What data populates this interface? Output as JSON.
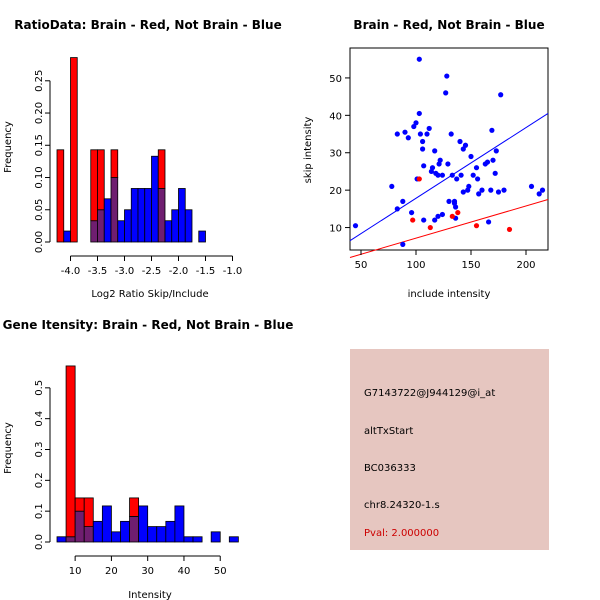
{
  "colors": {
    "brain": "#ff0000",
    "not_brain": "#0000ff",
    "overlap": "#6f1e70",
    "info_bg": "#e6c6c0",
    "pval_text": "#cc0000",
    "axis": "#000000"
  },
  "info_panel": {
    "probe_id": "G7143722@J944129@i_at",
    "event_type": "altTxStart",
    "accession": "BC036333",
    "location": "chr8.24320-1.s",
    "pval": "Pval: 2.000000"
  },
  "chart_data": [
    {
      "type": "bar",
      "title": "RatioData: Brain - Red, Not Brain - Blue",
      "xlabel": "Log2 Ratio Skip/Include",
      "ylabel": "Frequency",
      "xlim": [
        -4.25,
        -0.75
      ],
      "ylim": [
        0,
        0.29
      ],
      "bin_width": 0.125,
      "bin_start": -4.25,
      "x_ticks": [
        -4.0,
        -3.5,
        -3.0,
        -2.5,
        -2.0,
        -1.5,
        -1.0
      ],
      "x_tick_labels": [
        "-4.0",
        "-3.5",
        "-3.0",
        "-2.5",
        "-2.0",
        "-1.5",
        "-1.0"
      ],
      "y_ticks": [
        0.0,
        0.05,
        0.1,
        0.15,
        0.2,
        0.25
      ],
      "y_tick_labels": [
        "0.00",
        "0.05",
        "0.10",
        "0.15",
        "0.20",
        "0.25"
      ],
      "series": [
        {
          "name": "Brain",
          "values": [
            0.143,
            0,
            0.286,
            0,
            0,
            0.143,
            0.143,
            0,
            0.143,
            0,
            0,
            0,
            0,
            0,
            0,
            0.143,
            0,
            0,
            0,
            0,
            0,
            0,
            0,
            0,
            0,
            0,
            0,
            0
          ]
        },
        {
          "name": "Not Brain",
          "values": [
            0,
            0.017,
            0,
            0,
            0,
            0.033,
            0.05,
            0.067,
            0.1,
            0.033,
            0.05,
            0.083,
            0.083,
            0.083,
            0.133,
            0.083,
            0.033,
            0.05,
            0.083,
            0.05,
            0,
            0.017,
            0,
            0,
            0,
            0,
            0,
            0
          ]
        }
      ]
    },
    {
      "type": "scatter",
      "title": "Brain - Red, Not Brain - Blue",
      "xlabel": "include intensity",
      "ylabel": "skip intensity",
      "xlim": [
        40,
        220
      ],
      "ylim": [
        4,
        58
      ],
      "x_ticks": [
        50,
        100,
        150,
        200
      ],
      "x_tick_labels": [
        "50",
        "100",
        "150",
        "200"
      ],
      "y_ticks": [
        10,
        20,
        30,
        40,
        50
      ],
      "y_tick_labels": [
        "10",
        "20",
        "30",
        "40",
        "50"
      ],
      "series": [
        {
          "name": "Brain",
          "points": [
            [
              97,
              12
            ],
            [
              103,
              23
            ],
            [
              113,
              10
            ],
            [
              138,
              14
            ],
            [
              155,
              10.5
            ],
            [
              185,
              9.5
            ],
            [
              133,
              13
            ]
          ]
        },
        {
          "name": "Not Brain",
          "points": [
            [
              45,
              10.5
            ],
            [
              78,
              21
            ],
            [
              83,
              35
            ],
            [
              83,
              15
            ],
            [
              88,
              17
            ],
            [
              88,
              5.5
            ],
            [
              90,
              35.5
            ],
            [
              93,
              34
            ],
            [
              96,
              14
            ],
            [
              98,
              37
            ],
            [
              100,
              38
            ],
            [
              101,
              23
            ],
            [
              103,
              40.5
            ],
            [
              103,
              55
            ],
            [
              104,
              35
            ],
            [
              106,
              33
            ],
            [
              106,
              31
            ],
            [
              107,
              12
            ],
            [
              107,
              26.5
            ],
            [
              110,
              35
            ],
            [
              112,
              36.5
            ],
            [
              114,
              25
            ],
            [
              115,
              26
            ],
            [
              117,
              12
            ],
            [
              117,
              30.5
            ],
            [
              118,
              24.5
            ],
            [
              120,
              24
            ],
            [
              120,
              13
            ],
            [
              121,
              27
            ],
            [
              122,
              28
            ],
            [
              124,
              24
            ],
            [
              124,
              13.5
            ],
            [
              127,
              46
            ],
            [
              128,
              50.5
            ],
            [
              129,
              27
            ],
            [
              130,
              17
            ],
            [
              132,
              35
            ],
            [
              133,
              24
            ],
            [
              135,
              16.5
            ],
            [
              135,
              17
            ],
            [
              136,
              15.5
            ],
            [
              136,
              12.5
            ],
            [
              137,
              23
            ],
            [
              140,
              33
            ],
            [
              141,
              24
            ],
            [
              143,
              31
            ],
            [
              143,
              19.5
            ],
            [
              145,
              32
            ],
            [
              147,
              20
            ],
            [
              148,
              21
            ],
            [
              150,
              29
            ],
            [
              152,
              24
            ],
            [
              155,
              26
            ],
            [
              156,
              23
            ],
            [
              157,
              19
            ],
            [
              160,
              20
            ],
            [
              163,
              27
            ],
            [
              165,
              27.5
            ],
            [
              166,
              11.5
            ],
            [
              168,
              20
            ],
            [
              169,
              36
            ],
            [
              170,
              28
            ],
            [
              172,
              24.5
            ],
            [
              173,
              30.5
            ],
            [
              175,
              19.5
            ],
            [
              177,
              45.5
            ],
            [
              180,
              20
            ],
            [
              205,
              21
            ],
            [
              212,
              19
            ],
            [
              215,
              20
            ]
          ]
        }
      ],
      "fit_lines": [
        {
          "name": "Not Brain fit",
          "x": [
            40,
            220
          ],
          "y": [
            6.5,
            40.5
          ]
        },
        {
          "name": "Brain fit",
          "x": [
            40,
            220
          ],
          "y": [
            2.0,
            17.5
          ]
        }
      ]
    },
    {
      "type": "bar",
      "title": "Gene Itensity: Brain - Red, Not Brain - Blue",
      "xlabel": "Intensity",
      "ylabel": "Frequency",
      "xlim": [
        5,
        56
      ],
      "ylim": [
        0,
        0.6
      ],
      "bin_width": 2.5,
      "bin_start": 5,
      "x_ticks": [
        10,
        20,
        30,
        40,
        50
      ],
      "x_tick_labels": [
        "10",
        "20",
        "30",
        "40",
        "50"
      ],
      "y_ticks": [
        0.0,
        0.1,
        0.2,
        0.3,
        0.4,
        0.5
      ],
      "y_tick_labels": [
        "0.0",
        "0.1",
        "0.2",
        "0.3",
        "0.4",
        "0.5"
      ],
      "series": [
        {
          "name": "Brain",
          "values": [
            0,
            0.571,
            0.143,
            0.143,
            0,
            0,
            0,
            0,
            0.143,
            0,
            0,
            0,
            0,
            0,
            0,
            0,
            0,
            0,
            0,
            0
          ]
        },
        {
          "name": "Not Brain",
          "values": [
            0.017,
            0.017,
            0.1,
            0.05,
            0.067,
            0.117,
            0.033,
            0.067,
            0.083,
            0.117,
            0.05,
            0.05,
            0.067,
            0.117,
            0.017,
            0.017,
            0,
            0.033,
            0,
            0.017
          ]
        }
      ]
    }
  ]
}
